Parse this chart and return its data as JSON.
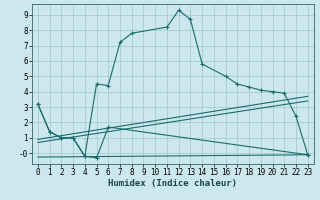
{
  "xlabel": "Humidex (Indice chaleur)",
  "background_color": "#cce8ee",
  "grid_color": "#aacccc",
  "line_color": "#1a6b6b",
  "xlim": [
    -0.5,
    23.5
  ],
  "ylim": [
    -0.7,
    9.7
  ],
  "xticks": [
    0,
    1,
    2,
    3,
    4,
    5,
    6,
    7,
    8,
    9,
    10,
    11,
    12,
    13,
    14,
    15,
    16,
    17,
    18,
    19,
    20,
    21,
    22,
    23
  ],
  "yticks": [
    0,
    1,
    2,
    3,
    4,
    5,
    6,
    7,
    8,
    9
  ],
  "ytick_labels": [
    "-0",
    "1",
    "2",
    "3",
    "4",
    "5",
    "6",
    "7",
    "8",
    "9"
  ],
  "curve1_x": [
    0,
    1,
    2,
    3,
    4,
    5,
    6,
    7,
    8,
    11,
    12,
    13,
    14,
    16,
    17,
    18,
    19,
    20,
    21,
    22,
    23
  ],
  "curve1_y": [
    3.2,
    1.4,
    1.0,
    1.0,
    -0.2,
    4.5,
    4.4,
    7.2,
    7.8,
    8.2,
    9.3,
    8.7,
    5.8,
    5.0,
    4.5,
    4.3,
    4.1,
    4.0,
    3.9,
    2.4,
    -0.1
  ],
  "curve2_x": [
    0,
    1,
    2,
    3,
    4,
    5,
    6,
    23
  ],
  "curve2_y": [
    3.2,
    1.4,
    1.0,
    1.0,
    -0.2,
    -0.3,
    1.7,
    -0.1
  ],
  "line1_x": [
    0,
    23
  ],
  "line1_y": [
    0.9,
    3.7
  ],
  "line2_x": [
    0,
    23
  ],
  "line2_y": [
    0.7,
    3.4
  ],
  "line3_x": [
    0,
    23
  ],
  "line3_y": [
    -0.25,
    -0.1
  ]
}
